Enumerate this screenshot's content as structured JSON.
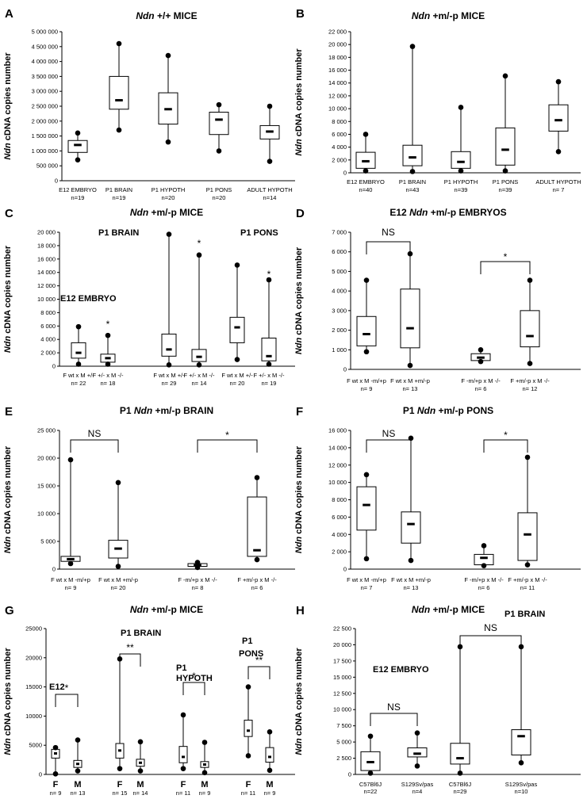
{
  "chart_data": [
    {
      "id": "A",
      "type": "box",
      "title_italic": "Ndn",
      "title_rest": " +/+ MICE",
      "ylabel_italic": "Ndn",
      "ylabel_rest": " cDNA copies number",
      "ylim": [
        0,
        5000000
      ],
      "yticks": [
        "0",
        "500 000",
        "1 000 000",
        "1 500 000",
        "2 000 000",
        "2 500 000",
        "3 000 000",
        "3 500 000",
        "4 000 000",
        "4 500 000",
        "5 000 000"
      ],
      "boxes": [
        {
          "label": "E12 EMBRYO",
          "n": "n=19",
          "min": 700000,
          "q1": 950000,
          "med": 1200000,
          "q3": 1350000,
          "max": 1600000
        },
        {
          "label": "P1 BRAIN",
          "n": "n=19",
          "min": 1700000,
          "q1": 2400000,
          "med": 2700000,
          "q3": 3500000,
          "max": 4600000
        },
        {
          "label": "P1 HYPOTH",
          "n": "n=20",
          "min": 1300000,
          "q1": 1900000,
          "med": 2400000,
          "q3": 2950000,
          "max": 4200000
        },
        {
          "label": "P1 PONS",
          "n": "n=20",
          "min": 1000000,
          "q1": 1550000,
          "med": 2050000,
          "q3": 2300000,
          "max": 2550000
        },
        {
          "label": "ADULT HYPOTH",
          "n": "n=14",
          "min": 650000,
          "q1": 1400000,
          "med": 1650000,
          "q3": 1850000,
          "max": 2500000
        }
      ],
      "annotations": []
    },
    {
      "id": "B",
      "type": "box",
      "title_italic": "Ndn",
      "title_rest": " +m/-p MICE",
      "ylabel_italic": "Ndn",
      "ylabel_rest": " cDNA copies number",
      "ylim": [
        0,
        22000
      ],
      "yticks": [
        "0",
        "2 000",
        "4 000",
        "6 000",
        "8 000",
        "10 000",
        "12 000",
        "14 000",
        "16 000",
        "18 000",
        "20 000",
        "22 000"
      ],
      "boxes": [
        {
          "label": "E12 EMBRYO",
          "n": "n=40",
          "min": 300,
          "q1": 700,
          "med": 1800,
          "q3": 3200,
          "max": 6000
        },
        {
          "label": "P1 BRAIN",
          "n": "n=43",
          "min": 200,
          "q1": 1100,
          "med": 2400,
          "q3": 4300,
          "max": 19700
        },
        {
          "label": "P1 HYPOTH",
          "n": "n=39",
          "min": 300,
          "q1": 700,
          "med": 1700,
          "q3": 3300,
          "max": 10200
        },
        {
          "label": "P1 PONS",
          "n": "n=39",
          "min": 300,
          "q1": 1200,
          "med": 3600,
          "q3": 7000,
          "max": 15100
        },
        {
          "label": "ADULT HYPOTH",
          "n": "n= 7",
          "min": 3300,
          "q1": 6500,
          "med": 8200,
          "q3": 10600,
          "max": 14200
        }
      ],
      "annotations": []
    },
    {
      "id": "C",
      "type": "box",
      "title_italic": "Ndn",
      "title_rest": " +m/-p MICE",
      "ylabel_italic": "Ndn",
      "ylabel_rest": " cDNA copies number",
      "ylim": [
        0,
        20000
      ],
      "yticks": [
        "0",
        "2 000",
        "4 000",
        "6 000",
        "8 000",
        "10 000",
        "12 000",
        "14 000",
        "16 000",
        "18 000",
        "20 000"
      ],
      "boxes": [
        {
          "label": "F wt x M +/-",
          "n": "n= 22",
          "min": 300,
          "q1": 1200,
          "med": 2000,
          "q3": 3500,
          "max": 5900
        },
        {
          "label": "F +/- x M -/-",
          "n": "n= 18",
          "min": 300,
          "q1": 600,
          "med": 1200,
          "q3": 1800,
          "max": 4600
        },
        {
          "label": "F wt x M +/-",
          "n": "n= 29",
          "min": 200,
          "q1": 1500,
          "med": 2500,
          "q3": 4800,
          "max": 19700
        },
        {
          "label": "F +/- x M -/-",
          "n": "n= 14",
          "min": 200,
          "q1": 700,
          "med": 1400,
          "q3": 2500,
          "max": 16600
        },
        {
          "label": "F wt x M +/-",
          "n": "n= 20",
          "min": 1000,
          "q1": 3500,
          "med": 5800,
          "q3": 7300,
          "max": 15100
        },
        {
          "label": "F +/- x M -/-",
          "n": "n= 19",
          "min": 300,
          "q1": 800,
          "med": 1500,
          "q3": 4200,
          "max": 12900
        }
      ],
      "annotations": [
        "E12 EMBRYO",
        "P1 BRAIN",
        "P1 PONS",
        "*",
        "*",
        "*"
      ]
    },
    {
      "id": "D",
      "type": "box",
      "title_italic": "Ndn",
      "title_pre": "E12 ",
      "title_rest": " +m/-p EMBRYOS",
      "ylabel_italic": "Ndn",
      "ylabel_rest": " cDNA copies number",
      "ylim": [
        0,
        7000
      ],
      "yticks": [
        "0",
        "1 000",
        "2 000",
        "3 000",
        "4 000",
        "5 000",
        "6 000",
        "7 000"
      ],
      "boxes": [
        {
          "label": "F wt x M -m/+p",
          "n": "n= 9",
          "min": 900,
          "q1": 1200,
          "med": 1800,
          "q3": 2700,
          "max": 4550
        },
        {
          "label": "F wt x M +m/-p",
          "n": "n= 13",
          "min": 200,
          "q1": 1100,
          "med": 2100,
          "q3": 4100,
          "max": 5900
        },
        {
          "label": "F -m/+p x M -/-",
          "n": "n= 6",
          "min": 400,
          "q1": 450,
          "med": 600,
          "q3": 800,
          "max": 1000
        },
        {
          "label": "F +m/-p x M -/-",
          "n": "n= 12",
          "min": 300,
          "q1": 1150,
          "med": 1700,
          "q3": 3000,
          "max": 4550
        }
      ],
      "annotations": [
        "NS",
        "*"
      ]
    },
    {
      "id": "E",
      "type": "box",
      "title_italic": "Ndn",
      "title_pre": "P1 ",
      "title_rest": " +m/-p BRAIN",
      "ylabel_italic": "Ndn",
      "ylabel_rest": " cDNA copies number",
      "ylim": [
        0,
        25000
      ],
      "yticks": [
        "0",
        "5 000",
        "10 000",
        "15 000",
        "20 000",
        "25 000"
      ],
      "boxes": [
        {
          "label": "F wt x M -m/+p",
          "n": "n= 9",
          "min": 1000,
          "q1": 1400,
          "med": 1800,
          "q3": 2300,
          "max": 19700
        },
        {
          "label": "F wt x M +m/-p",
          "n": "n= 20",
          "min": 500,
          "q1": 2000,
          "med": 3700,
          "q3": 5200,
          "max": 15600
        },
        {
          "label": "F -m/+p x M -/-",
          "n": "n= 8",
          "min": 300,
          "q1": 500,
          "med": 700,
          "q3": 1000,
          "max": 1200
        },
        {
          "label": "F +m/-p x M -/-",
          "n": "n= 6",
          "min": 1700,
          "q1": 2300,
          "med": 3400,
          "q3": 13000,
          "max": 16500
        }
      ],
      "annotations": [
        "NS",
        "*"
      ]
    },
    {
      "id": "F",
      "type": "box",
      "title_italic": "Ndn",
      "title_pre": "P1 ",
      "title_rest": " +m/-p PONS",
      "ylabel_italic": "Ndn",
      "ylabel_rest": " cDNA copies number",
      "ylim": [
        0,
        16000
      ],
      "yticks": [
        "0",
        "2 000",
        "4 000",
        "6 000",
        "8 000",
        "10 000",
        "12 000",
        "14 000",
        "16 000"
      ],
      "boxes": [
        {
          "label": "F wt x M -m/+p",
          "n": "n= 7",
          "min": 1200,
          "q1": 4500,
          "med": 7400,
          "q3": 9500,
          "max": 10900
        },
        {
          "label": "F wt x M +m/-p",
          "n": "n= 13",
          "min": 1000,
          "q1": 3000,
          "med": 5200,
          "q3": 6600,
          "max": 15100
        },
        {
          "label": "F -m/+p x M -/-",
          "n": "n= 6",
          "min": 400,
          "q1": 500,
          "med": 1300,
          "q3": 1700,
          "max": 2700
        },
        {
          "label": "F +m/-p x M -/-",
          "n": "n= 11",
          "min": 500,
          "q1": 1000,
          "med": 4000,
          "q3": 6500,
          "max": 12900
        }
      ],
      "annotations": [
        "NS",
        "*"
      ]
    },
    {
      "id": "G",
      "type": "box",
      "title_italic": "Ndn",
      "title_rest": " +m/-p MICE",
      "ylabel_italic": "Ndn",
      "ylabel_rest": " cDNA copies number",
      "ylim": [
        0,
        25000
      ],
      "yticks": [
        "0",
        "5000",
        "10000",
        "15000",
        "20000",
        "25000"
      ],
      "boxes": [
        {
          "label": "F",
          "n": "n= 9",
          "min": 100,
          "q1": 2800,
          "med": 3600,
          "q3": 4300,
          "max": 4600
        },
        {
          "label": "M",
          "n": "n= 13",
          "min": 600,
          "q1": 1200,
          "med": 1800,
          "q3": 2400,
          "max": 5900
        },
        {
          "label": "F",
          "n": "n= 15",
          "min": 1000,
          "q1": 2800,
          "med": 4100,
          "q3": 5300,
          "max": 19800
        },
        {
          "label": "M",
          "n": "n= 14",
          "min": 600,
          "q1": 1400,
          "med": 2000,
          "q3": 2600,
          "max": 5600
        },
        {
          "label": "F",
          "n": "n= 11",
          "min": 1000,
          "q1": 2000,
          "med": 3000,
          "q3": 4800,
          "max": 10200
        },
        {
          "label": "M",
          "n": "n= 9",
          "min": 300,
          "q1": 1200,
          "med": 1700,
          "q3": 2200,
          "max": 5500
        },
        {
          "label": "F",
          "n": "n= 11",
          "min": 3200,
          "q1": 6500,
          "med": 7500,
          "q3": 9300,
          "max": 15000
        },
        {
          "label": "M",
          "n": "n= 9",
          "min": 700,
          "q1": 2100,
          "med": 3000,
          "q3": 4600,
          "max": 7300
        }
      ],
      "annotations": [
        "E12",
        "P1 BRAIN",
        "P1",
        "HYPOTH",
        "P1",
        "PONS",
        "*",
        "**",
        "*",
        "**"
      ]
    },
    {
      "id": "H",
      "type": "box",
      "title_italic": "Ndn",
      "title_rest": " +m/-p MICE",
      "ylabel_italic": "Ndn",
      "ylabel_rest": " cDNA copies number",
      "ylim": [
        0,
        22500
      ],
      "yticks": [
        "0",
        "2 500",
        "5 000",
        "7 500",
        "10 000",
        "12 500",
        "15 000",
        "17 500",
        "20 000",
        "22 500"
      ],
      "boxes": [
        {
          "label": "C57Bl6J",
          "n": "n=22",
          "min": 200,
          "q1": 600,
          "med": 1900,
          "q3": 3500,
          "max": 5900
        },
        {
          "label": "S129Sv/pas",
          "n": "n=4",
          "min": 1300,
          "q1": 2700,
          "med": 3200,
          "q3": 4100,
          "max": 6400
        },
        {
          "label": "C57Bl6J",
          "n": "n=29",
          "min": 200,
          "q1": 1600,
          "med": 2500,
          "q3": 4800,
          "max": 19700
        },
        {
          "label": "S129Sv/pas",
          "n": "n=10",
          "min": 1800,
          "q1": 3000,
          "med": 5900,
          "q3": 6900,
          "max": 19700
        }
      ],
      "annotations": [
        "E12 EMBRYO",
        "P1 BRAIN",
        "NS",
        "NS"
      ]
    }
  ]
}
